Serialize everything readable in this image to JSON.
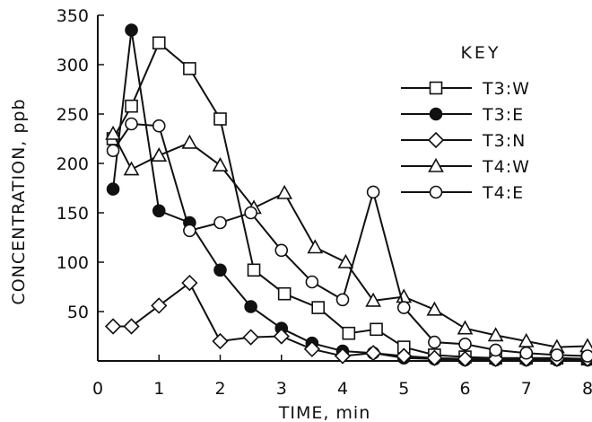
{
  "chart_data": {
    "type": "line",
    "title": "",
    "xlabel": "TIME, min",
    "ylabel": "CONCENTRATION, ppb",
    "xlim": [
      0,
      8
    ],
    "ylim": [
      0,
      350
    ],
    "x_ticks": [
      0,
      1,
      2,
      3,
      4,
      5,
      6,
      7,
      8
    ],
    "y_ticks": [
      50,
      100,
      150,
      200,
      250,
      300,
      350
    ],
    "x_tick_labels": [
      "0",
      "1",
      "2",
      "3",
      "4",
      "5",
      "6",
      "7",
      "8"
    ],
    "y_tick_labels": [
      "50",
      "100",
      "150",
      "200",
      "250",
      "300",
      "350"
    ],
    "grid": false,
    "legend_title": "KEY",
    "legend_position": "top-right",
    "series": [
      {
        "name": "T3:W",
        "marker": "square-open",
        "x": [
          0.25,
          0.55,
          1.0,
          1.5,
          2.0,
          2.55,
          3.05,
          3.6,
          4.1,
          4.55,
          5.0,
          5.5,
          6.0,
          6.5,
          7.0,
          7.5,
          8.0
        ],
        "y": [
          225,
          258,
          322,
          296,
          245,
          92,
          68,
          54,
          28,
          32,
          14,
          6,
          4,
          3,
          3,
          3,
          2
        ]
      },
      {
        "name": "T3:E",
        "marker": "circle-filled",
        "x": [
          0.25,
          0.55,
          1.0,
          1.5,
          2.0,
          2.5,
          3.0,
          3.5,
          4.0,
          4.5,
          5.0,
          5.5,
          6.0,
          6.5,
          7.0,
          7.5,
          8.0
        ],
        "y": [
          174,
          335,
          152,
          140,
          92,
          55,
          33,
          18,
          10,
          8,
          3,
          2,
          1,
          1,
          1,
          1,
          1
        ]
      },
      {
        "name": "T3:N",
        "marker": "diamond-open",
        "x": [
          0.25,
          0.55,
          1.0,
          1.5,
          2.0,
          2.5,
          3.0,
          3.5,
          4.0,
          4.5,
          5.0,
          5.5,
          6.0,
          6.5,
          7.0,
          7.5,
          8.0
        ],
        "y": [
          35,
          35,
          56,
          79,
          20,
          24,
          25,
          12,
          5,
          8,
          5,
          3,
          2,
          2,
          2,
          2,
          2
        ]
      },
      {
        "name": "T4:W",
        "marker": "triangle-open",
        "x": [
          0.25,
          0.55,
          1.0,
          1.5,
          2.0,
          2.55,
          3.05,
          3.55,
          4.05,
          4.5,
          5.0,
          5.5,
          6.0,
          6.5,
          7.0,
          7.5,
          8.0
        ],
        "y": [
          230,
          194,
          208,
          221,
          198,
          155,
          170,
          115,
          100,
          61,
          65,
          52,
          33,
          26,
          20,
          14,
          15
        ]
      },
      {
        "name": "T4:E",
        "marker": "circle-open",
        "x": [
          0.25,
          0.55,
          1.0,
          1.5,
          2.0,
          2.5,
          3.0,
          3.5,
          4.0,
          4.5,
          5.0,
          5.5,
          6.0,
          6.5,
          7.0,
          7.5,
          8.0
        ],
        "y": [
          213,
          240,
          238,
          132,
          140,
          150,
          112,
          80,
          62,
          171,
          54,
          19,
          17,
          11,
          8,
          6,
          5
        ]
      }
    ]
  }
}
